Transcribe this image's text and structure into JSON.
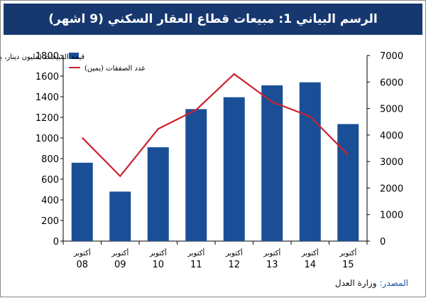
{
  "title": "الرسم البياني 1: مبيعات قطاع العقار السكني (9 اشهر)",
  "source": {
    "label": "المصدر:",
    "text": "وزارة العدل"
  },
  "colors": {
    "title_bg": "#17386f",
    "bar": "#1a4f97",
    "line": "#cc2131",
    "axis": "#000000"
  },
  "chart_data": {
    "type": "bar",
    "categories": [
      [
        "أكتوبر",
        "08"
      ],
      [
        "أكتوبر",
        "09"
      ],
      [
        "أكتوبر",
        "10"
      ],
      [
        "أكتوبر",
        "11"
      ],
      [
        "أكتوبر",
        "12"
      ],
      [
        "أكتوبر",
        "13"
      ],
      [
        "أكتوبر",
        "14"
      ],
      [
        "أكتوبر",
        "15"
      ]
    ],
    "series": [
      {
        "name": "قيمة المبيعات (مليون دينار، يسار)",
        "type": "bar",
        "axis": "left",
        "values": [
          760,
          480,
          910,
          1280,
          1395,
          1510,
          1540,
          1135
        ]
      },
      {
        "name": "عدد الصفقات (يمين)",
        "type": "line",
        "axis": "right",
        "values": [
          3900,
          2450,
          4230,
          4950,
          6300,
          5250,
          4700,
          3250
        ]
      }
    ],
    "y_left": {
      "min": 0,
      "max": 1800,
      "ticks": [
        0,
        200,
        400,
        600,
        800,
        1000,
        1200,
        1400,
        1600,
        1800
      ]
    },
    "y_right": {
      "min": 0,
      "max": 7000,
      "ticks": [
        0,
        1000,
        2000,
        3000,
        4000,
        5000,
        6000,
        7000
      ]
    },
    "grid": false,
    "legend": "top-left"
  }
}
